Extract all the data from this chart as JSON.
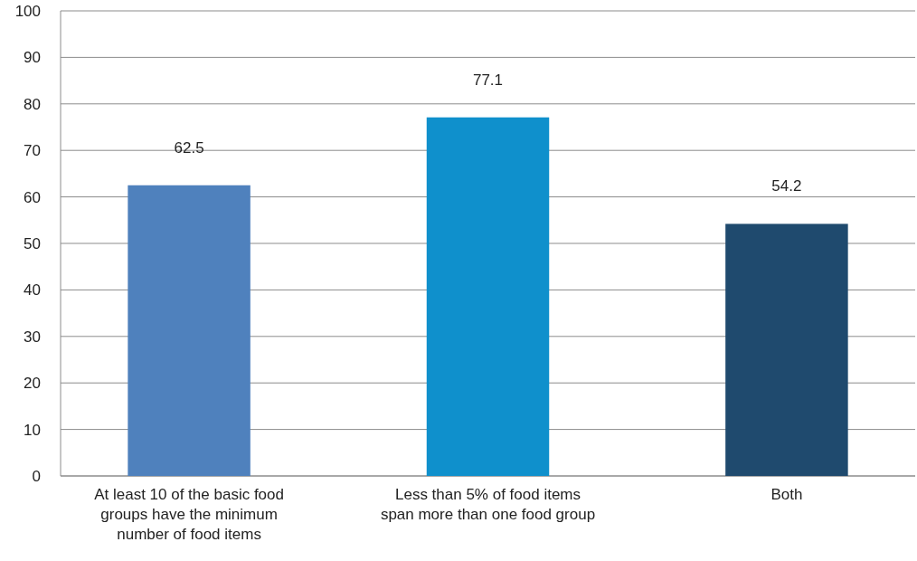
{
  "chart_data": {
    "type": "bar",
    "categories": [
      "At least 10 of the basic food groups have the minimum number of food items",
      "Less than 5% of food items span more than one food group",
      "Both"
    ],
    "values": [
      62.5,
      77.1,
      54.2
    ],
    "colors": [
      "#4f81bd",
      "#0f90cc",
      "#1f4a6e"
    ],
    "ylim": [
      0,
      100
    ],
    "yticks": [
      0,
      10,
      20,
      30,
      40,
      50,
      60,
      70,
      80,
      90,
      100
    ],
    "grid": "y",
    "data_labels": true
  }
}
